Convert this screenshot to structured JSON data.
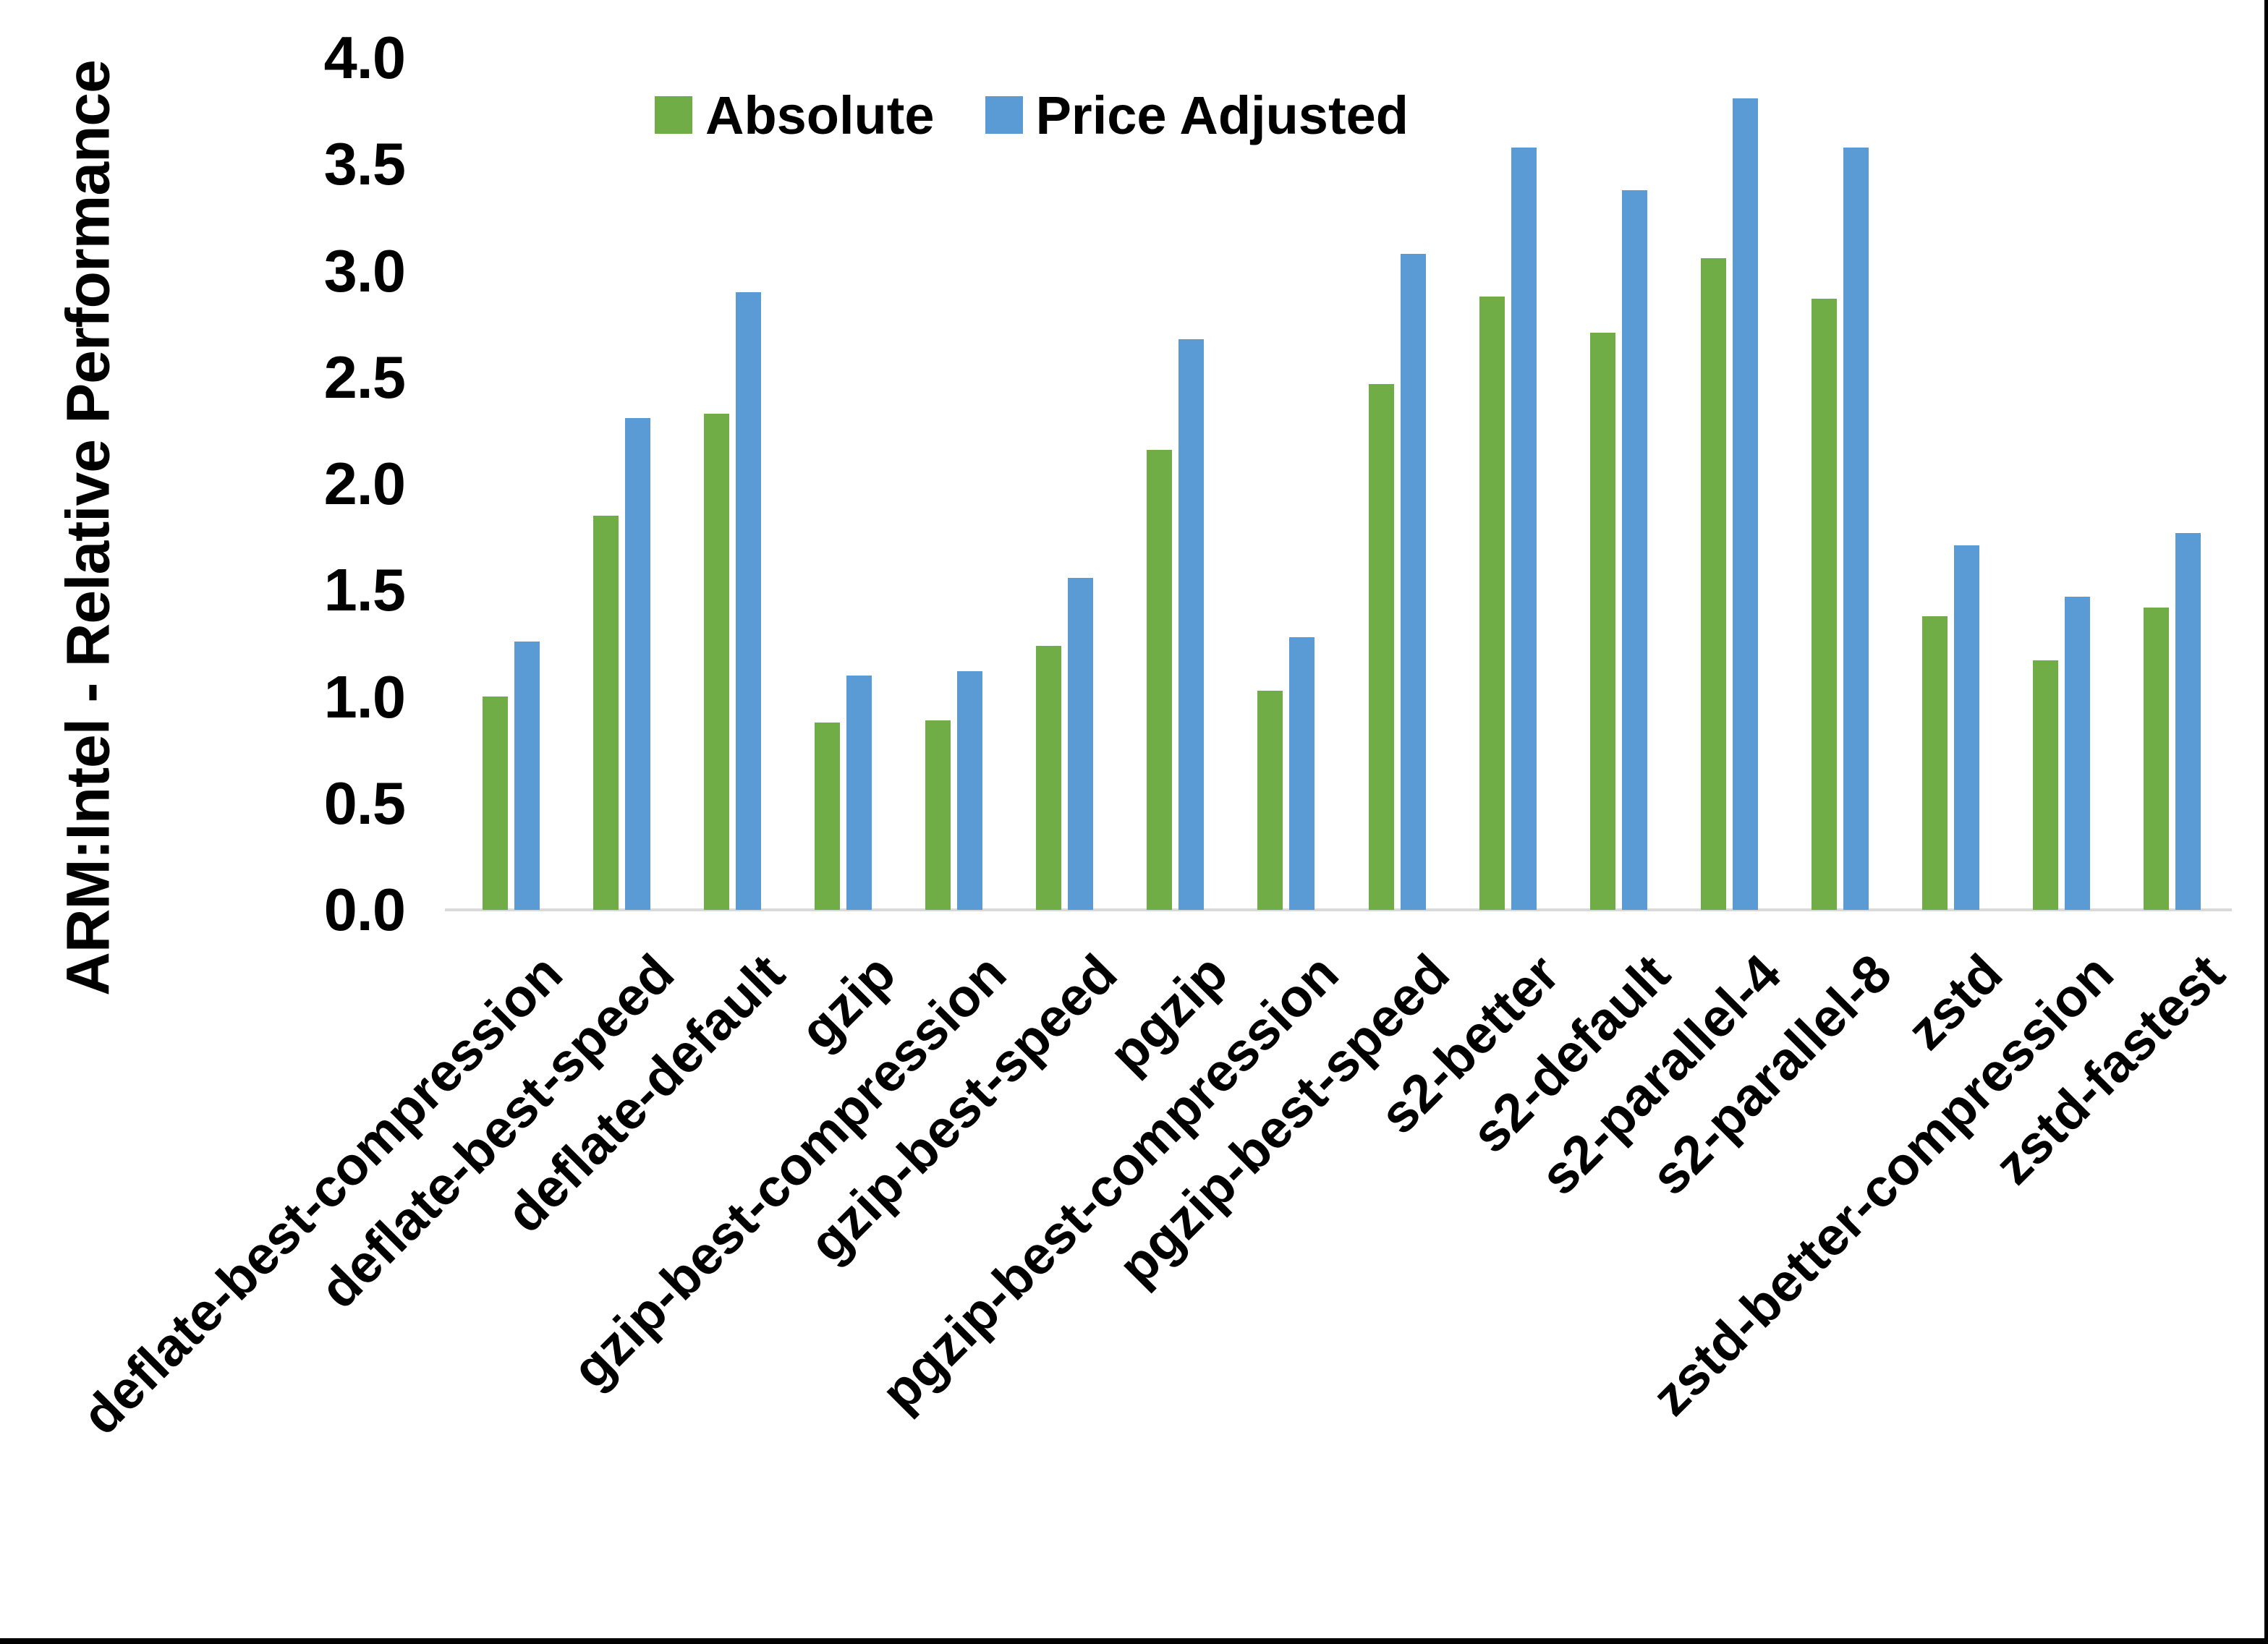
{
  "chart_data": {
    "type": "bar",
    "title": "",
    "xlabel": "",
    "ylabel": "ARM:Intel - Relative Performance",
    "ylim": [
      0.0,
      4.0
    ],
    "ytick_step": 0.5,
    "yticks": [
      "0.0",
      "0.5",
      "1.0",
      "1.5",
      "2.0",
      "2.5",
      "3.0",
      "3.5",
      "4.0"
    ],
    "grid": false,
    "legend_position": "top-center",
    "categories": [
      "deflate-best-compression",
      "deflate-best-speed",
      "deflate-default",
      "gzip",
      "gzip-best-compression",
      "gzip-best-speed",
      "pgzip",
      "pgzip-best-compression",
      "pgzip-best-speed",
      "s2-better",
      "s2-default",
      "s2-parallel-4",
      "s2-parallel-8",
      "zstd",
      "zstd-better-compression",
      "zstd-fastest"
    ],
    "series": [
      {
        "name": "Absolute",
        "color": "#70AD47",
        "values": [
          1.0,
          1.85,
          2.33,
          0.88,
          0.89,
          1.24,
          2.16,
          1.03,
          2.47,
          2.88,
          2.71,
          3.06,
          2.87,
          1.38,
          1.17,
          1.42
        ]
      },
      {
        "name": "Price Adjusted",
        "color": "#5B9BD5",
        "values": [
          1.26,
          2.31,
          2.9,
          1.1,
          1.12,
          1.56,
          2.68,
          1.28,
          3.08,
          3.58,
          3.38,
          3.81,
          3.58,
          1.71,
          1.47,
          1.77
        ]
      }
    ]
  },
  "colors": {
    "background": "#FFFFFF",
    "axis_line": "#D9D9D9",
    "text": "#000000",
    "frame": "#000000"
  }
}
